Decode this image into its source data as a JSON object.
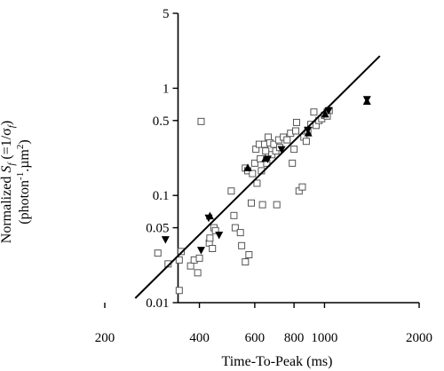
{
  "chart_data": {
    "type": "scatter",
    "title": "",
    "xlabel": "Time-To-Peak (ms)",
    "ylabel_line1": "Normalized S (=1/σ )",
    "ylabel_line1_parts": [
      "Normalized ",
      "S",
      "f",
      " (=1/σ",
      "f",
      ")"
    ],
    "ylabel_line2_parts": [
      "(photon",
      "-1",
      ".µm",
      "2",
      ")"
    ],
    "x_scale": "log",
    "y_scale": "log",
    "xlim": [
      200,
      2000
    ],
    "ylim": [
      0.01,
      5
    ],
    "x_ticks": [
      200,
      400,
      600,
      800,
      1000,
      2000
    ],
    "x_tick_labels": [
      "200",
      "400",
      "600",
      "800",
      "1000",
      "2000"
    ],
    "y_ticks": [
      0.01,
      0.05,
      0.1,
      0.5,
      1,
      5
    ],
    "y_tick_labels": [
      "0.01",
      "0.05",
      "0.1",
      "0.5",
      "1",
      "5"
    ],
    "grid": false,
    "series": [
      {
        "marker": "open-square",
        "points": [
          [
            295,
            0.029
          ],
          [
            318,
            0.023
          ],
          [
            345,
            0.013
          ],
          [
            345,
            0.025
          ],
          [
            350,
            0.03
          ],
          [
            375,
            0.022
          ],
          [
            385,
            0.025
          ],
          [
            395,
            0.019
          ],
          [
            400,
            0.026
          ],
          [
            405,
            0.49
          ],
          [
            430,
            0.036
          ],
          [
            432,
            0.04
          ],
          [
            440,
            0.032
          ],
          [
            445,
            0.05
          ],
          [
            450,
            0.047
          ],
          [
            505,
            0.11
          ],
          [
            515,
            0.065
          ],
          [
            520,
            0.05
          ],
          [
            540,
            0.045
          ],
          [
            545,
            0.034
          ],
          [
            560,
            0.18
          ],
          [
            570,
            0.17
          ],
          [
            575,
            0.028
          ],
          [
            585,
            0.085
          ],
          [
            590,
            0.16
          ],
          [
            600,
            0.2
          ],
          [
            605,
            0.27
          ],
          [
            610,
            0.13
          ],
          [
            620,
            0.3
          ],
          [
            625,
            0.22
          ],
          [
            630,
            0.17
          ],
          [
            635,
            0.082
          ],
          [
            645,
            0.3
          ],
          [
            650,
            0.26
          ],
          [
            655,
            0.2
          ],
          [
            662,
            0.35
          ],
          [
            670,
            0.31
          ],
          [
            680,
            0.24
          ],
          [
            690,
            0.3
          ],
          [
            700,
            0.26
          ],
          [
            705,
            0.082
          ],
          [
            715,
            0.33
          ],
          [
            720,
            0.28
          ],
          [
            740,
            0.35
          ],
          [
            760,
            0.33
          ],
          [
            780,
            0.38
          ],
          [
            800,
            0.27
          ],
          [
            810,
            0.4
          ],
          [
            815,
            0.48
          ],
          [
            830,
            0.11
          ],
          [
            850,
            0.12
          ],
          [
            860,
            0.35
          ],
          [
            875,
            0.32
          ],
          [
            885,
            0.4
          ],
          [
            905,
            0.46
          ],
          [
            925,
            0.6
          ],
          [
            940,
            0.45
          ],
          [
            960,
            0.5
          ],
          [
            980,
            0.52
          ],
          [
            1000,
            0.56
          ],
          [
            1020,
            0.6
          ],
          [
            1035,
            0.62
          ],
          [
            560,
            0.024
          ],
          [
            1020,
            0.55
          ],
          [
            790,
            0.2
          ]
        ]
      },
      {
        "marker": "filled-triangle-up",
        "points": [
          [
            432,
            0.064
          ],
          [
            570,
            0.18
          ],
          [
            648,
            0.22
          ],
          [
            888,
            0.38
          ],
          [
            1005,
            0.57
          ],
          [
            1365,
            0.75
          ]
        ]
      },
      {
        "marker": "filled-triangle-down",
        "points": [
          [
            312,
            0.039
          ],
          [
            405,
            0.031
          ],
          [
            428,
            0.062
          ],
          [
            462,
            0.043
          ],
          [
            660,
            0.22
          ],
          [
            730,
            0.27
          ],
          [
            885,
            0.41
          ],
          [
            1030,
            0.62
          ],
          [
            1365,
            0.79
          ]
        ]
      }
    ],
    "fit_line": {
      "points": [
        [
          250,
          0.011
        ],
        [
          1500,
          2.0
        ]
      ]
    }
  }
}
